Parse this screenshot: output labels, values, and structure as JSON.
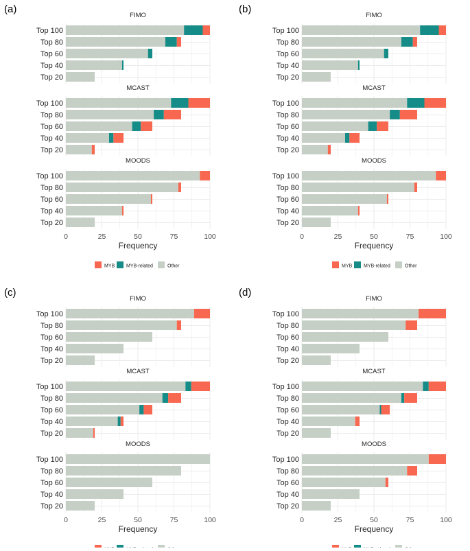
{
  "colors": {
    "MYB": "#F8674F",
    "MYB-related": "#158C87",
    "Other": "#C6CFC5",
    "grid": "#EBEBEB",
    "text": "#222222",
    "axis_text": "#4D4D4D"
  },
  "legend_entries": [
    "MYB",
    "MYB-related",
    "Other"
  ],
  "xlabel": "Frequency",
  "categories": [
    "Top 100",
    "Top 80",
    "Top 60",
    "Top 40",
    "Top 20"
  ],
  "x_ticks": [
    0,
    25,
    50,
    75,
    100
  ],
  "chart_data": [
    {
      "type": "bar",
      "panel_label": "(a)",
      "xlabel": "Frequency",
      "xlim": [
        0,
        100
      ],
      "facets": [
        {
          "title": "FIMO",
          "categories": [
            "Top 100",
            "Top 80",
            "Top 60",
            "Top 40",
            "Top 20"
          ],
          "series": [
            {
              "name": "Other",
              "values": [
                82,
                69,
                57,
                39,
                20
              ]
            },
            {
              "name": "MYB-related",
              "values": [
                13,
                8,
                3,
                1,
                0
              ]
            },
            {
              "name": "MYB",
              "values": [
                5,
                3,
                0,
                0,
                0
              ]
            }
          ]
        },
        {
          "title": "MCAST",
          "categories": [
            "Top 100",
            "Top 80",
            "Top 60",
            "Top 40",
            "Top 20"
          ],
          "series": [
            {
              "name": "Other",
              "values": [
                73,
                61,
                46,
                30,
                18
              ]
            },
            {
              "name": "MYB-related",
              "values": [
                12,
                7,
                6,
                3,
                0
              ]
            },
            {
              "name": "MYB",
              "values": [
                15,
                12,
                8,
                7,
                2
              ]
            }
          ]
        },
        {
          "title": "MOODS",
          "categories": [
            "Top 100",
            "Top 80",
            "Top 60",
            "Top 40",
            "Top 20"
          ],
          "series": [
            {
              "name": "Other",
              "values": [
                93,
                78,
                59,
                39,
                20
              ]
            },
            {
              "name": "MYB-related",
              "values": [
                0,
                0,
                0,
                0,
                0
              ]
            },
            {
              "name": "MYB",
              "values": [
                7,
                2,
                1,
                1,
                0
              ]
            }
          ]
        }
      ]
    },
    {
      "type": "bar",
      "panel_label": "(b)",
      "xlabel": "Frequency",
      "xlim": [
        0,
        100
      ],
      "facets": [
        {
          "title": "FIMO",
          "categories": [
            "Top 100",
            "Top 80",
            "Top 60",
            "Top 40",
            "Top 20"
          ],
          "series": [
            {
              "name": "Other",
              "values": [
                82,
                69,
                57,
                39,
                20
              ]
            },
            {
              "name": "MYB-related",
              "values": [
                13,
                8,
                3,
                1,
                0
              ]
            },
            {
              "name": "MYB",
              "values": [
                5,
                3,
                0,
                0,
                0
              ]
            }
          ]
        },
        {
          "title": "MCAST",
          "categories": [
            "Top 100",
            "Top 80",
            "Top 60",
            "Top 40",
            "Top 20"
          ],
          "series": [
            {
              "name": "Other",
              "values": [
                73,
                61,
                46,
                30,
                18
              ]
            },
            {
              "name": "MYB-related",
              "values": [
                12,
                7,
                6,
                3,
                0
              ]
            },
            {
              "name": "MYB",
              "values": [
                15,
                12,
                8,
                7,
                2
              ]
            }
          ]
        },
        {
          "title": "MOODS",
          "categories": [
            "Top 100",
            "Top 80",
            "Top 60",
            "Top 40",
            "Top 20"
          ],
          "series": [
            {
              "name": "Other",
              "values": [
                93,
                78,
                59,
                39,
                20
              ]
            },
            {
              "name": "MYB-related",
              "values": [
                0,
                0,
                0,
                0,
                0
              ]
            },
            {
              "name": "MYB",
              "values": [
                7,
                2,
                1,
                1,
                0
              ]
            }
          ]
        }
      ]
    },
    {
      "type": "bar",
      "panel_label": "(c)",
      "xlabel": "Frequency",
      "xlim": [
        0,
        100
      ],
      "facets": [
        {
          "title": "FIMO",
          "categories": [
            "Top 100",
            "Top 80",
            "Top 60",
            "Top 40",
            "Top 20"
          ],
          "series": [
            {
              "name": "Other",
              "values": [
                89,
                77,
                60,
                40,
                20
              ]
            },
            {
              "name": "MYB-related",
              "values": [
                0,
                0,
                0,
                0,
                0
              ]
            },
            {
              "name": "MYB",
              "values": [
                11,
                3,
                0,
                0,
                0
              ]
            }
          ]
        },
        {
          "title": "MCAST",
          "categories": [
            "Top 100",
            "Top 80",
            "Top 60",
            "Top 40",
            "Top 20"
          ],
          "series": [
            {
              "name": "Other",
              "values": [
                83,
                67,
                51,
                36,
                19
              ]
            },
            {
              "name": "MYB-related",
              "values": [
                4,
                4,
                3,
                2,
                0
              ]
            },
            {
              "name": "MYB",
              "values": [
                13,
                9,
                6,
                2,
                1
              ]
            }
          ]
        },
        {
          "title": "MOODS",
          "categories": [
            "Top 100",
            "Top 80",
            "Top 60",
            "Top 40",
            "Top 20"
          ],
          "series": [
            {
              "name": "Other",
              "values": [
                100,
                80,
                60,
                40,
                20
              ]
            },
            {
              "name": "MYB-related",
              "values": [
                0,
                0,
                0,
                0,
                0
              ]
            },
            {
              "name": "MYB",
              "values": [
                0,
                0,
                0,
                0,
                0
              ]
            }
          ]
        }
      ]
    },
    {
      "type": "bar",
      "panel_label": "(d)",
      "xlabel": "Frequency",
      "xlim": [
        0,
        100
      ],
      "facets": [
        {
          "title": "FIMO",
          "categories": [
            "Top 100",
            "Top 80",
            "Top 60",
            "Top 40",
            "Top 20"
          ],
          "series": [
            {
              "name": "Other",
              "values": [
                81,
                72,
                60,
                40,
                20
              ]
            },
            {
              "name": "MYB-related",
              "values": [
                0,
                0,
                0,
                0,
                0
              ]
            },
            {
              "name": "MYB",
              "values": [
                19,
                8,
                0,
                0,
                0
              ]
            }
          ]
        },
        {
          "title": "MCAST",
          "categories": [
            "Top 100",
            "Top 80",
            "Top 60",
            "Top 40",
            "Top 20"
          ],
          "series": [
            {
              "name": "Other",
              "values": [
                84,
                69,
                54,
                37,
                20
              ]
            },
            {
              "name": "MYB-related",
              "values": [
                4,
                2,
                1,
                0,
                0
              ]
            },
            {
              "name": "MYB",
              "values": [
                12,
                9,
                6,
                3,
                0
              ]
            }
          ]
        },
        {
          "title": "MOODS",
          "categories": [
            "Top 100",
            "Top 80",
            "Top 60",
            "Top 40",
            "Top 20"
          ],
          "series": [
            {
              "name": "Other",
              "values": [
                88,
                73,
                58,
                40,
                20
              ]
            },
            {
              "name": "MYB-related",
              "values": [
                0,
                0,
                0,
                0,
                0
              ]
            },
            {
              "name": "MYB",
              "values": [
                12,
                7,
                2,
                0,
                0
              ]
            }
          ]
        }
      ]
    }
  ]
}
